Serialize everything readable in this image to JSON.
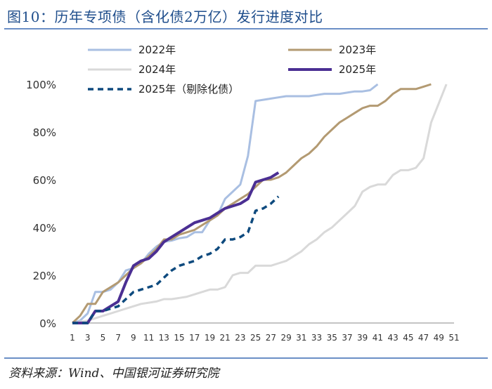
{
  "title": "图10：历年专项债（含化债2万亿）发行进度对比",
  "source": "资料来源：Wind、中国银河证券研究院",
  "chart_data": {
    "type": "line",
    "title": "图10：历年专项债（含化债2万亿）发行进度对比",
    "xlabel": "",
    "ylabel": "",
    "xlim": [
      1,
      51
    ],
    "ylim": [
      0,
      100
    ],
    "x_ticks": [
      1,
      3,
      5,
      7,
      9,
      11,
      13,
      15,
      17,
      19,
      21,
      23,
      25,
      27,
      29,
      31,
      33,
      35,
      37,
      39,
      41,
      43,
      45,
      47,
      49,
      51
    ],
    "y_ticks": [
      0,
      20,
      40,
      60,
      80,
      100
    ],
    "y_tick_labels": [
      "0%",
      "20%",
      "40%",
      "60%",
      "80%",
      "100%"
    ],
    "legend_position": "top",
    "series": [
      {
        "name": "2022年",
        "color": "#a9bfe2",
        "width": 3,
        "dash": "solid",
        "points": [
          [
            1,
            0
          ],
          [
            2,
            1
          ],
          [
            3,
            4
          ],
          [
            4,
            13
          ],
          [
            5,
            13
          ],
          [
            6,
            14
          ],
          [
            7,
            17
          ],
          [
            8,
            22
          ],
          [
            9,
            23
          ],
          [
            10,
            25
          ],
          [
            11,
            29
          ],
          [
            12,
            32
          ],
          [
            13,
            34
          ],
          [
            14,
            34.5
          ],
          [
            15,
            35.5
          ],
          [
            16,
            36
          ],
          [
            17,
            38
          ],
          [
            18,
            38
          ],
          [
            19,
            43
          ],
          [
            20,
            45
          ],
          [
            21,
            52
          ],
          [
            22,
            55
          ],
          [
            23,
            58
          ],
          [
            24,
            70
          ],
          [
            25,
            93
          ],
          [
            26,
            93.5
          ],
          [
            27,
            94
          ],
          [
            28,
            94.5
          ],
          [
            29,
            95
          ],
          [
            30,
            95
          ],
          [
            31,
            95
          ],
          [
            32,
            95
          ],
          [
            33,
            95.5
          ],
          [
            34,
            96
          ],
          [
            35,
            96
          ],
          [
            36,
            96
          ],
          [
            37,
            96.5
          ],
          [
            38,
            97
          ],
          [
            39,
            97
          ],
          [
            40,
            97.5
          ],
          [
            41,
            100
          ]
        ]
      },
      {
        "name": "2023年",
        "color": "#b39a72",
        "width": 3,
        "dash": "solid",
        "points": [
          [
            1,
            0
          ],
          [
            2,
            3
          ],
          [
            3,
            8
          ],
          [
            4,
            8
          ],
          [
            5,
            13
          ],
          [
            6,
            15
          ],
          [
            7,
            17
          ],
          [
            8,
            20
          ],
          [
            9,
            23
          ],
          [
            10,
            25
          ],
          [
            11,
            28
          ],
          [
            12,
            31
          ],
          [
            13,
            35
          ],
          [
            14,
            35
          ],
          [
            15,
            37
          ],
          [
            16,
            38
          ],
          [
            17,
            39
          ],
          [
            18,
            41
          ],
          [
            19,
            43
          ],
          [
            20,
            45
          ],
          [
            21,
            48
          ],
          [
            22,
            50
          ],
          [
            23,
            52
          ],
          [
            24,
            54
          ],
          [
            25,
            57
          ],
          [
            26,
            60
          ],
          [
            27,
            60
          ],
          [
            28,
            61
          ],
          [
            29,
            63
          ],
          [
            30,
            66
          ],
          [
            31,
            69
          ],
          [
            32,
            71
          ],
          [
            33,
            74
          ],
          [
            34,
            78
          ],
          [
            35,
            81
          ],
          [
            36,
            84
          ],
          [
            37,
            86
          ],
          [
            38,
            88
          ],
          [
            39,
            90
          ],
          [
            40,
            91
          ],
          [
            41,
            91
          ],
          [
            42,
            93
          ],
          [
            43,
            96
          ],
          [
            44,
            98
          ],
          [
            45,
            98
          ],
          [
            46,
            98
          ],
          [
            47,
            99
          ],
          [
            48,
            100
          ]
        ]
      },
      {
        "name": "2024年",
        "color": "#d9d9d9",
        "width": 3,
        "dash": "solid",
        "points": [
          [
            1,
            0
          ],
          [
            2,
            0.5
          ],
          [
            3,
            1
          ],
          [
            4,
            2
          ],
          [
            5,
            3
          ],
          [
            6,
            4
          ],
          [
            7,
            5
          ],
          [
            8,
            6
          ],
          [
            9,
            7
          ],
          [
            10,
            8
          ],
          [
            11,
            8.5
          ],
          [
            12,
            9
          ],
          [
            13,
            10
          ],
          [
            14,
            10
          ],
          [
            15,
            10.5
          ],
          [
            16,
            11
          ],
          [
            17,
            12
          ],
          [
            18,
            13
          ],
          [
            19,
            14
          ],
          [
            20,
            14
          ],
          [
            21,
            15
          ],
          [
            22,
            20
          ],
          [
            23,
            21
          ],
          [
            24,
            21
          ],
          [
            25,
            24
          ],
          [
            26,
            24
          ],
          [
            27,
            24
          ],
          [
            28,
            25
          ],
          [
            29,
            26
          ],
          [
            30,
            28
          ],
          [
            31,
            30
          ],
          [
            32,
            33
          ],
          [
            33,
            35
          ],
          [
            34,
            38
          ],
          [
            35,
            40
          ],
          [
            36,
            43
          ],
          [
            37,
            46
          ],
          [
            38,
            49
          ],
          [
            39,
            55
          ],
          [
            40,
            57
          ],
          [
            41,
            58
          ],
          [
            42,
            58
          ],
          [
            43,
            62
          ],
          [
            44,
            64
          ],
          [
            45,
            64
          ],
          [
            46,
            65
          ],
          [
            47,
            69
          ],
          [
            48,
            84
          ],
          [
            49,
            92
          ],
          [
            50,
            100
          ]
        ]
      },
      {
        "name": "2025年",
        "color": "#4b2f93",
        "width": 4,
        "dash": "solid",
        "points": [
          [
            1,
            0
          ],
          [
            2,
            0
          ],
          [
            3,
            0
          ],
          [
            4,
            5
          ],
          [
            5,
            5
          ],
          [
            6,
            7
          ],
          [
            7,
            9
          ],
          [
            8,
            17
          ],
          [
            9,
            24
          ],
          [
            10,
            26
          ],
          [
            11,
            27
          ],
          [
            12,
            30
          ],
          [
            13,
            34
          ],
          [
            14,
            36
          ],
          [
            15,
            38
          ],
          [
            16,
            40
          ],
          [
            17,
            42
          ],
          [
            18,
            43
          ],
          [
            19,
            44
          ],
          [
            20,
            46
          ],
          [
            21,
            48
          ],
          [
            22,
            49
          ],
          [
            23,
            50
          ],
          [
            24,
            52
          ],
          [
            25,
            59
          ],
          [
            26,
            60
          ],
          [
            27,
            61
          ],
          [
            28,
            63
          ]
        ]
      },
      {
        "name": "2025年（剔除化债）",
        "color": "#0e4a7e",
        "width": 3.5,
        "dash": "8,6",
        "points": [
          [
            1,
            0
          ],
          [
            2,
            0
          ],
          [
            3,
            0
          ],
          [
            4,
            5
          ],
          [
            5,
            5
          ],
          [
            6,
            6
          ],
          [
            7,
            7
          ],
          [
            8,
            10
          ],
          [
            9,
            13
          ],
          [
            10,
            14
          ],
          [
            11,
            15
          ],
          [
            12,
            16
          ],
          [
            13,
            19
          ],
          [
            14,
            22
          ],
          [
            15,
            24
          ],
          [
            16,
            25
          ],
          [
            17,
            26
          ],
          [
            18,
            28
          ],
          [
            19,
            29
          ],
          [
            20,
            31
          ],
          [
            21,
            35
          ],
          [
            22,
            35
          ],
          [
            23,
            36
          ],
          [
            24,
            38
          ],
          [
            25,
            47
          ],
          [
            26,
            48
          ],
          [
            27,
            50
          ],
          [
            28,
            53
          ]
        ]
      }
    ]
  }
}
